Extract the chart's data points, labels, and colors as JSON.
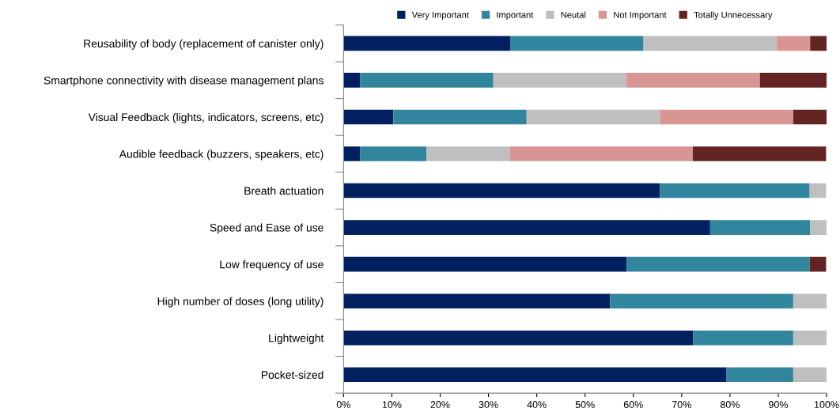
{
  "chart_data": {
    "type": "bar",
    "orientation": "horizontal",
    "stacked": true,
    "legend": "top",
    "grid": false,
    "categories": [
      "Reusability of body (replacement of canister only)",
      "Smartphone connectivity with disease management plans",
      "Visual Feedback (lights, indicators, screens, etc)",
      "Audible feedback (buzzers, speakers, etc)",
      "Breath actuation",
      "Speed and Ease of use",
      "Low frequency of use",
      "High number of doses (long utility)",
      "Lightweight",
      "Pocket-sized"
    ],
    "series": [
      {
        "name": "Very Important",
        "color": "#002060",
        "values": [
          34.5,
          3.4,
          10.3,
          3.4,
          65.5,
          75.9,
          58.6,
          55.2,
          72.4,
          79.3
        ]
      },
      {
        "name": "Important",
        "color": "#31859c",
        "values": [
          27.6,
          27.6,
          27.6,
          13.8,
          31.0,
          20.7,
          37.9,
          37.9,
          20.7,
          13.8
        ]
      },
      {
        "name": "Neutal",
        "color": "#bfbfbf",
        "values": [
          27.6,
          27.6,
          27.6,
          17.2,
          3.4,
          3.4,
          0,
          6.9,
          6.9,
          6.9
        ]
      },
      {
        "name": "Not Important",
        "color": "#d99594",
        "values": [
          6.9,
          27.6,
          27.6,
          37.9,
          0,
          0,
          0,
          0,
          0,
          0
        ]
      },
      {
        "name": "Totally Unnecessary",
        "color": "#632523",
        "values": [
          3.4,
          13.8,
          6.9,
          27.6,
          0,
          0,
          3.4,
          0,
          0,
          0
        ]
      }
    ],
    "xlim": [
      0,
      100
    ],
    "xticks": [
      {
        "value": 0,
        "label": "0%"
      },
      {
        "value": 10,
        "label": "10%"
      },
      {
        "value": 20,
        "label": "20%"
      },
      {
        "value": 30,
        "label": "30%"
      },
      {
        "value": 40,
        "label": "40%"
      },
      {
        "value": 50,
        "label": "50%"
      },
      {
        "value": 60,
        "label": "60%"
      },
      {
        "value": 70,
        "label": "70%"
      },
      {
        "value": 80,
        "label": "80%"
      },
      {
        "value": 90,
        "label": "90%"
      },
      {
        "value": 100,
        "label": "100%"
      }
    ]
  }
}
